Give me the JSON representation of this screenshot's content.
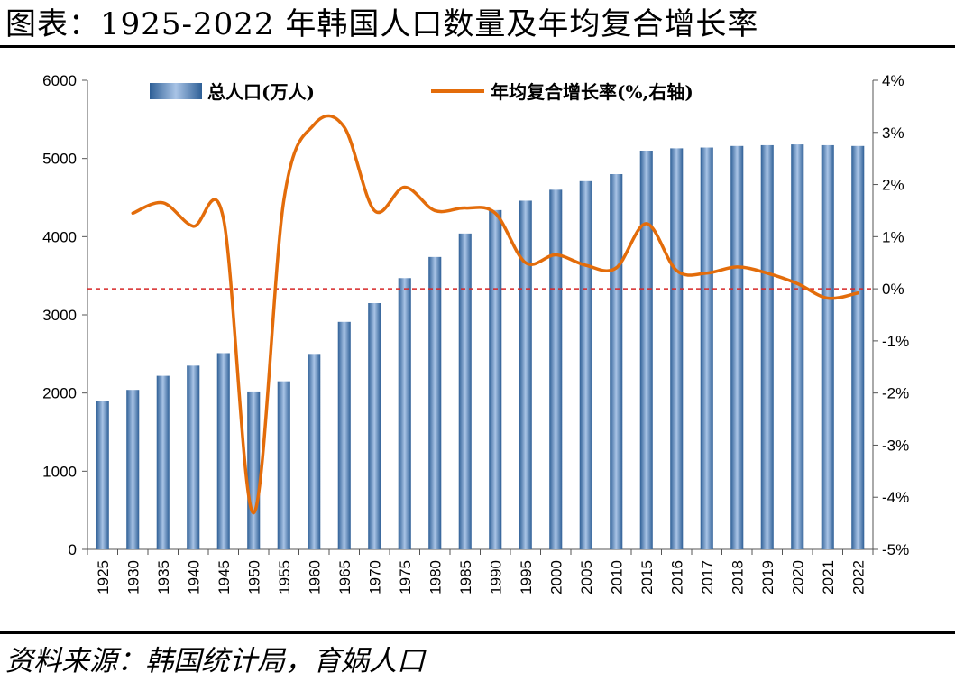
{
  "title": "图表：1925-2022 年韩国人口数量及年均复合增长率",
  "source": "资料来源：韩国统计局，育娲人口",
  "colors": {
    "bar": "#4f81bd",
    "bar_dark": "#2e5f96",
    "bar_light": "#a9c4e6",
    "line": "#e36c0a",
    "zero_line": "#d62728"
  },
  "chart_data": {
    "type": "bar+line",
    "categories": [
      "1925",
      "1930",
      "1935",
      "1940",
      "1945",
      "1950",
      "1955",
      "1960",
      "1965",
      "1970",
      "1975",
      "1980",
      "1985",
      "1990",
      "1995",
      "2000",
      "2005",
      "2010",
      "2015",
      "2016",
      "2017",
      "2018",
      "2019",
      "2020",
      "2021",
      "2022"
    ],
    "series": [
      {
        "name": "总人口(万人)",
        "type": "bar",
        "axis": "left",
        "values": [
          1900,
          2040,
          2220,
          2350,
          2510,
          2020,
          2150,
          2500,
          2910,
          3150,
          3470,
          3740,
          4040,
          4340,
          4460,
          4600,
          4710,
          4800,
          5100,
          5130,
          5140,
          5160,
          5170,
          5180,
          5170,
          5160
        ]
      },
      {
        "name": "年均复合增长率(%,右轴)",
        "type": "line",
        "axis": "right",
        "values": [
          null,
          1.45,
          1.65,
          1.2,
          1.35,
          -4.3,
          1.7,
          3.15,
          3.1,
          1.5,
          1.95,
          1.5,
          1.55,
          1.45,
          0.5,
          0.65,
          0.45,
          0.4,
          1.25,
          0.35,
          0.3,
          0.42,
          0.3,
          0.1,
          -0.18,
          -0.08
        ]
      }
    ],
    "y_left": {
      "min": 0,
      "max": 6000,
      "step": 1000,
      "ticks": [
        "0",
        "1000",
        "2000",
        "3000",
        "4000",
        "5000",
        "6000"
      ]
    },
    "y_right": {
      "min": -5,
      "max": 4,
      "step": 1,
      "ticks": [
        "-5%",
        "-4%",
        "-3%",
        "-2%",
        "-1%",
        "0%",
        "1%",
        "2%",
        "3%",
        "4%"
      ]
    },
    "reference_line": {
      "axis": "right",
      "value": 0,
      "style": "dashed"
    },
    "legend": {
      "position": "top",
      "items": [
        "总人口(万人)",
        "年均复合增长率(%,右轴)"
      ]
    }
  }
}
